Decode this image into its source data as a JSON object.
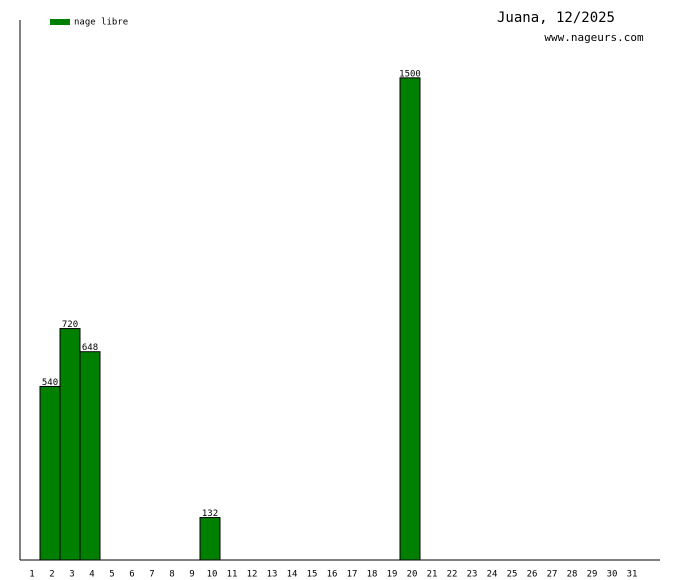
{
  "chart_data": {
    "type": "bar",
    "title": "Juana, 12/2025",
    "subtitle": "www.nageurs.com",
    "categories": [
      "1",
      "2",
      "3",
      "4",
      "5",
      "6",
      "7",
      "8",
      "9",
      "10",
      "11",
      "12",
      "13",
      "14",
      "15",
      "16",
      "17",
      "18",
      "19",
      "20",
      "21",
      "22",
      "23",
      "24",
      "25",
      "26",
      "27",
      "28",
      "29",
      "30",
      "31"
    ],
    "series": [
      {
        "name": "nage libre",
        "color": "#008000",
        "values": [
          null,
          540,
          720,
          648,
          null,
          null,
          null,
          null,
          null,
          132,
          null,
          null,
          null,
          null,
          null,
          null,
          null,
          null,
          null,
          1500,
          null,
          null,
          null,
          null,
          null,
          null,
          null,
          null,
          null,
          null,
          null
        ]
      }
    ],
    "ylim": [
      0,
      1680
    ]
  }
}
